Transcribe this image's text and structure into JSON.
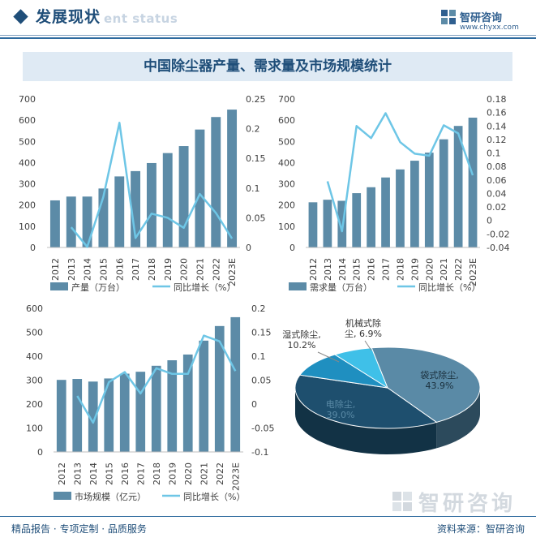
{
  "header": {
    "title": "发展现状",
    "subtitle": "ent status",
    "brand_name": "智研咨询",
    "brand_url": "www.chyxx.com"
  },
  "figure_title": "中国除尘器产量、需求量及市场规模统计",
  "footer": {
    "left": "精品报告 · 专项定制 · 品质服务",
    "right": "资料来源：智研咨询",
    "watermark": "智研咨询"
  },
  "colors": {
    "bar": "#5c8ba7",
    "line": "#6ec6e6",
    "axis_text": "#404040",
    "title": "#1f4e79"
  },
  "chart_data": [
    {
      "type": "bar",
      "categories": [
        "2012",
        "2013",
        "2014",
        "2015",
        "2016",
        "2017",
        "2018",
        "2019",
        "2020",
        "2021",
        "2022",
        "2023E"
      ],
      "series": [
        {
          "name": "产量（万台）",
          "type": "bar",
          "axis": "left",
          "values": [
            222,
            240,
            240,
            278,
            335,
            360,
            398,
            445,
            478,
            556,
            615,
            650
          ]
        },
        {
          "name": "同比增长（%）",
          "type": "line",
          "axis": "right",
          "values": [
            null,
            0.034,
            0.001,
            0.085,
            0.21,
            0.016,
            0.057,
            0.05,
            0.033,
            0.09,
            0.058,
            0.015
          ]
        }
      ],
      "ylim_left": [
        0,
        700
      ],
      "yticks_left": [
        "0",
        "100",
        "200",
        "300",
        "400",
        "500",
        "600",
        "700"
      ],
      "ylim_right": [
        0,
        0.25
      ],
      "yticks_right": [
        "0",
        "0.05",
        "0.1",
        "0.15",
        "0.2",
        "0.25"
      ],
      "legend": [
        "产量（万台）",
        "同比增长（%）"
      ]
    },
    {
      "type": "bar",
      "categories": [
        "2012",
        "2013",
        "2014",
        "2015",
        "2016",
        "2017",
        "2018",
        "2019",
        "2020",
        "2021",
        "2022",
        "2023E"
      ],
      "series": [
        {
          "name": "需求量（万台）",
          "type": "bar",
          "axis": "left",
          "values": [
            213,
            225,
            220,
            256,
            284,
            330,
            368,
            409,
            447,
            510,
            573,
            612
          ]
        },
        {
          "name": "同比增长（%）",
          "type": "line",
          "axis": "right",
          "values": [
            null,
            0.058,
            -0.016,
            0.14,
            0.122,
            0.159,
            0.116,
            0.099,
            0.096,
            0.141,
            0.129,
            0.067
          ]
        }
      ],
      "ylim_left": [
        0,
        700
      ],
      "yticks_left": [
        "0",
        "100",
        "200",
        "300",
        "400",
        "500",
        "600",
        "700"
      ],
      "ylim_right": [
        -0.04,
        0.18
      ],
      "yticks_right": [
        "-0.04",
        "-0.02",
        "0",
        "0.02",
        "0.04",
        "0.06",
        "0.08",
        "0.1",
        "0.12",
        "0.14",
        "0.16",
        "0.18"
      ],
      "legend": [
        "需求量（万台）",
        "同比增长（%）"
      ]
    },
    {
      "type": "bar",
      "categories": [
        "2012",
        "2013",
        "2014",
        "2015",
        "2016",
        "2017",
        "2018",
        "2019",
        "2020",
        "2021",
        "2022",
        "2023E"
      ],
      "series": [
        {
          "name": "市场规模（亿元）",
          "type": "bar",
          "axis": "left",
          "values": [
            301,
            305,
            294,
            307,
            327,
            335,
            360,
            383,
            407,
            465,
            526,
            563
          ]
        },
        {
          "name": "同比增长（%）",
          "type": "line",
          "axis": "right",
          "values": [
            null,
            0.017,
            -0.039,
            0.046,
            0.067,
            0.022,
            0.075,
            0.063,
            0.063,
            0.143,
            0.131,
            0.069
          ]
        }
      ],
      "ylim_left": [
        0,
        600
      ],
      "yticks_left": [
        "0",
        "100",
        "200",
        "300",
        "400",
        "500",
        "600"
      ],
      "ylim_right": [
        -0.1,
        0.2
      ],
      "yticks_right": [
        "-0.1",
        "-0.05",
        "0",
        "0.05",
        "0.1",
        "0.15",
        "0.2"
      ],
      "legend": [
        "市场规模（亿元）",
        "同比增长（%）"
      ]
    },
    {
      "type": "pie",
      "labels": [
        "袋式除尘",
        "电除尘",
        "湿式除尘",
        "机械式除尘"
      ],
      "values": [
        43.9,
        39.0,
        10.2,
        6.9
      ],
      "display_labels": [
        "袋式除尘,\n43.9%",
        "电除尘,\n39.0%",
        "湿式除尘,\n10.2%",
        "机械式除\n尘, 6.9%"
      ],
      "colors": [
        "#5a8aa6",
        "#1e4f6e",
        "#1f8fc0",
        "#3fc0e8"
      ],
      "side_colors": [
        "#2c4a5c",
        "#123245",
        "#135d80",
        "#2990b4"
      ]
    }
  ]
}
